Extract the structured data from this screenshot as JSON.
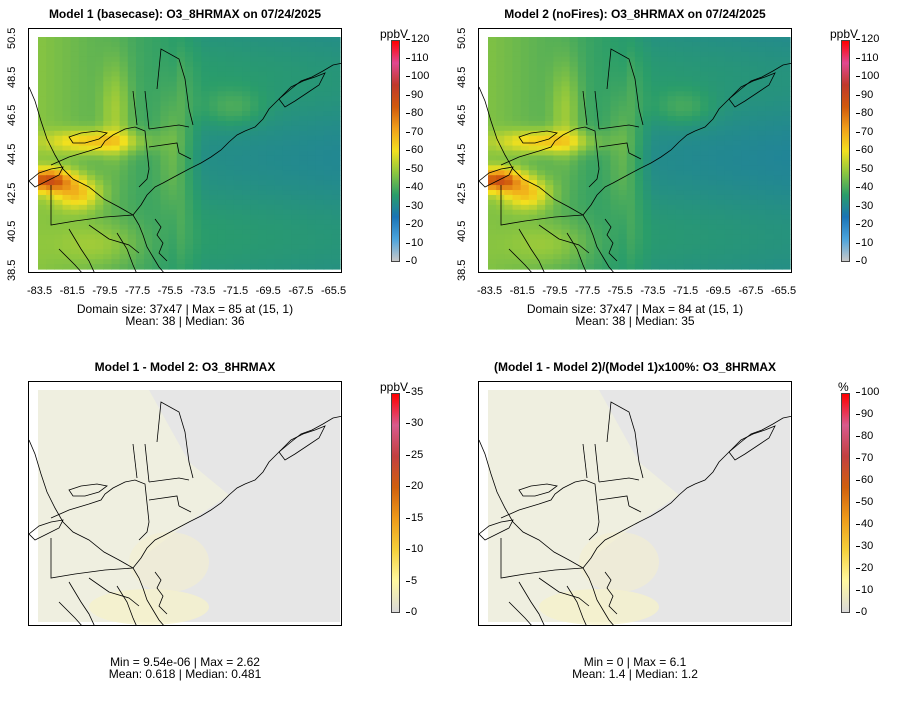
{
  "panels": [
    {
      "id": "model1",
      "title": "Model 1 (basecase): O3_8HRMAX on 07/24/2025",
      "unit": "ppbV",
      "colorbar_ticks": [
        "120",
        "110",
        "100",
        "90",
        "80",
        "70",
        "60",
        "50",
        "40",
        "30",
        "20",
        "10",
        "0"
      ],
      "stats_line1": "Domain size: 37x47 | Max = 85 at (15, 1)",
      "stats_line2": "Mean: 38 |  Median: 36",
      "map_palette": "ozone",
      "x_ticks": [
        "-83.5",
        "-81.5",
        "-79.5",
        "-77.5",
        "-75.5",
        "-73.5",
        "-71.5",
        "-69.5",
        "-67.5",
        "-65.5"
      ],
      "y_ticks": [
        "38.5",
        "40.5",
        "42.5",
        "44.5",
        "46.5",
        "48.5",
        "50.5"
      ]
    },
    {
      "id": "model2",
      "title": "Model 2 (noFires): O3_8HRMAX on 07/24/2025",
      "unit": "ppbV",
      "colorbar_ticks": [
        "120",
        "110",
        "100",
        "90",
        "80",
        "70",
        "60",
        "50",
        "40",
        "30",
        "20",
        "10",
        "0"
      ],
      "stats_line1": "Domain size: 37x47 | Max = 84 at (15, 1)",
      "stats_line2": "Mean: 38 |  Median: 35",
      "map_palette": "ozone",
      "x_ticks": [
        "-83.5",
        "-81.5",
        "-79.5",
        "-77.5",
        "-75.5",
        "-73.5",
        "-71.5",
        "-69.5",
        "-67.5",
        "-65.5"
      ],
      "y_ticks": [
        "38.5",
        "40.5",
        "42.5",
        "44.5",
        "46.5",
        "48.5",
        "50.5"
      ]
    },
    {
      "id": "diff",
      "title": "Model 1 - Model 2: O3_8HRMAX",
      "unit": "ppbV",
      "colorbar_ticks": [
        "35",
        "30",
        "25",
        "20",
        "15",
        "10",
        "5",
        "0"
      ],
      "stats_line1": "Min = 9.54e-06 | Max = 2.62",
      "stats_line2": "Mean: 0.618 |  Median: 0.481",
      "map_palette": "diff"
    },
    {
      "id": "pctdiff",
      "title": "(Model 1 - Model 2)/(Model 1)x100%: O3_8HRMAX",
      "unit": "%",
      "colorbar_ticks": [
        "100",
        "90",
        "80",
        "70",
        "60",
        "50",
        "40",
        "30",
        "20",
        "10",
        "0"
      ],
      "stats_line1": "Min = 0 | Max = 6.1",
      "stats_line2": "Mean: 1.4 |  Median: 1.2",
      "map_palette": "diff"
    }
  ],
  "colors": {
    "ozone_ramp": [
      "#c8c8c8",
      "#4aa3dc",
      "#1b74b6",
      "#2a9d6a",
      "#8cc63f",
      "#f2e01e",
      "#f0a11a",
      "#d05a0c",
      "#c0392b",
      "#e04890",
      "#ff0000"
    ],
    "diff_ramp": [
      "#d9d9d9",
      "#fff8a0",
      "#f5d03a",
      "#ee9a1a",
      "#d0600e",
      "#c24040",
      "#d85a8c",
      "#ff0000"
    ],
    "ocean_basecase": "#4aa3dc",
    "land_diff": "#efefdf",
    "ocean_diff": "#e6e6e6"
  }
}
